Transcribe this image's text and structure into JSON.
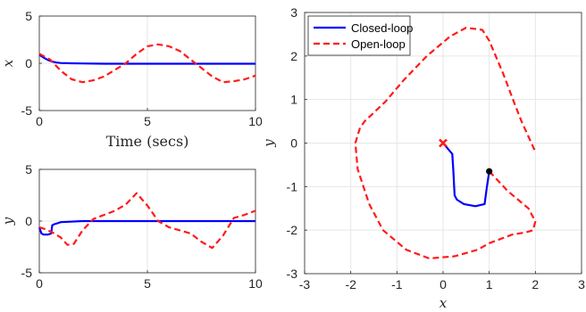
{
  "colors": {
    "closed": "#0000ff",
    "open": "#ff1a1a",
    "axis": "#262626",
    "grid": "#e6e6e6"
  },
  "chart_data": [
    {
      "type": "line",
      "xlabel": "Time (secs)",
      "ylabel": "x",
      "xlim": [
        0,
        10
      ],
      "ylim": [
        -5,
        5
      ],
      "xticks": [
        "0",
        "5",
        "10"
      ],
      "yticks": [
        "-5",
        "0",
        "5"
      ],
      "grid": true,
      "series": [
        {
          "style": "solid",
          "color": "#0000ff",
          "x": [
            0,
            0.2,
            0.4,
            0.6,
            0.8,
            1.0,
            1.5,
            2,
            3,
            10
          ],
          "y": [
            0.9,
            0.6,
            0.35,
            0.18,
            0.08,
            0.03,
            0.0,
            -0.02,
            -0.05,
            -0.05
          ]
        },
        {
          "style": "dashed",
          "color": "#ff1a1a",
          "x": [
            0,
            0.5,
            1,
            1.5,
            2,
            2.5,
            3,
            3.5,
            4,
            4.5,
            5,
            5.5,
            6,
            6.5,
            7,
            7.5,
            8,
            8.5,
            9,
            9.5,
            10
          ],
          "y": [
            1.0,
            0.4,
            -0.8,
            -1.7,
            -2.0,
            -1.8,
            -1.4,
            -0.7,
            0.0,
            1.0,
            1.8,
            2.0,
            1.8,
            1.3,
            0.4,
            -0.5,
            -1.4,
            -2.0,
            -1.9,
            -1.7,
            -1.3
          ]
        }
      ]
    },
    {
      "type": "line",
      "xlabel": "",
      "ylabel": "y",
      "xlim": [
        0,
        10
      ],
      "ylim": [
        -5,
        5
      ],
      "xticks": [
        "0",
        "5",
        "10"
      ],
      "yticks": [
        "-5",
        "0",
        "5"
      ],
      "grid": true,
      "series": [
        {
          "style": "solid",
          "color": "#0000ff",
          "x": [
            0,
            0.1,
            0.2,
            0.4,
            0.55,
            0.6,
            0.7,
            1.0,
            2,
            3,
            10
          ],
          "y": [
            -0.6,
            -1.2,
            -1.3,
            -1.3,
            -1.2,
            -0.4,
            -0.3,
            -0.1,
            0.0,
            0.0,
            0.0
          ]
        },
        {
          "style": "dashed",
          "color": "#ff1a1a",
          "x": [
            0,
            0.3,
            0.7,
            1.0,
            1.3,
            1.6,
            2.0,
            2.5,
            3.0,
            3.5,
            4.0,
            4.5,
            5.0,
            5.5,
            6.0,
            6.5,
            7.0,
            7.5,
            8.0,
            8.5,
            9.0,
            9.5,
            10
          ],
          "y": [
            -0.6,
            -0.8,
            -1.2,
            -1.6,
            -2.3,
            -2.2,
            -0.9,
            0.2,
            0.6,
            1.0,
            1.6,
            2.7,
            1.5,
            0.0,
            -0.6,
            -0.9,
            -1.2,
            -2.0,
            -2.6,
            -1.4,
            0.3,
            0.6,
            1.0
          ]
        }
      ]
    },
    {
      "type": "line",
      "xlabel": "x",
      "ylabel": "y",
      "xlim": [
        -3,
        3
      ],
      "ylim": [
        -3,
        3
      ],
      "xticks": [
        "-3",
        "-2",
        "-1",
        "0",
        "1",
        "2",
        "3"
      ],
      "yticks": [
        "-3",
        "-2",
        "-1",
        "0",
        "1",
        "2",
        "3"
      ],
      "grid": true,
      "legend": {
        "position": "top-left",
        "entries": [
          "Closed-loop",
          "Open-loop"
        ]
      },
      "series": [
        {
          "name": "Closed-loop",
          "style": "solid",
          "color": "#0000ff",
          "x": [
            1.0,
            0.95,
            0.9,
            0.7,
            0.45,
            0.3,
            0.25,
            0.22,
            0.2,
            0.0
          ],
          "y": [
            -0.65,
            -1.0,
            -1.4,
            -1.45,
            -1.4,
            -1.3,
            -1.2,
            -0.6,
            -0.25,
            0.0
          ]
        },
        {
          "name": "Open-loop",
          "style": "dashed",
          "color": "#ff1a1a",
          "x": [
            1.0,
            1.4,
            1.85,
            2.0,
            1.95,
            1.8,
            1.5,
            1.0,
            0.75,
            0.25,
            -0.3,
            -0.8,
            -1.3,
            -1.6,
            -1.85,
            -1.9,
            -1.8,
            -1.7,
            -1.55,
            -1.25,
            -0.85,
            -0.35,
            0.15,
            0.5,
            0.85,
            1.0,
            1.3,
            1.55,
            1.7,
            2.0
          ],
          "y": [
            -0.65,
            -1.1,
            -1.5,
            -1.8,
            -2.0,
            -2.05,
            -2.1,
            -2.3,
            -2.45,
            -2.6,
            -2.65,
            -2.45,
            -2.0,
            -1.4,
            -0.6,
            0.0,
            0.35,
            0.5,
            0.65,
            0.95,
            1.45,
            2.0,
            2.45,
            2.65,
            2.6,
            2.35,
            1.6,
            0.9,
            0.5,
            -0.2
          ]
        }
      ],
      "markers": [
        {
          "name": "start-point",
          "shape": "dot",
          "x": 1.0,
          "y": -0.65,
          "color": "#000000"
        },
        {
          "name": "equilibrium-cross",
          "shape": "x",
          "x": 0.0,
          "y": 0.0,
          "color": "#ff1a1a"
        }
      ]
    }
  ]
}
